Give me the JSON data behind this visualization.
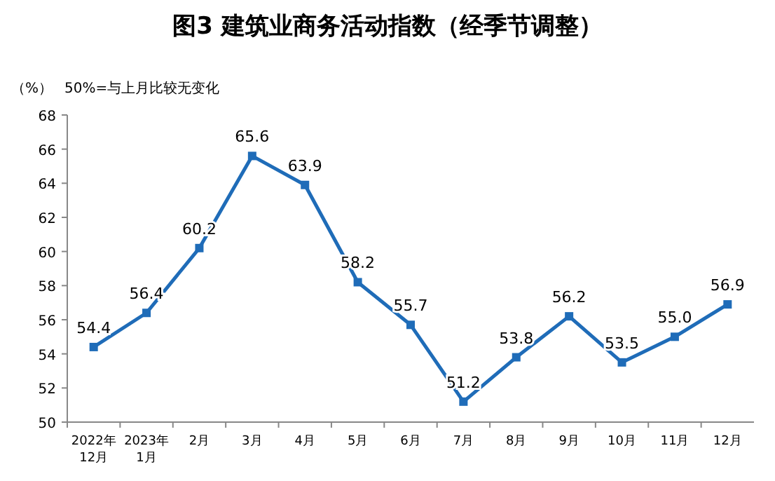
{
  "chart_data": {
    "type": "line",
    "title": "图3  建筑业商务活动指数（经季节调整）",
    "ylabel": "（%）",
    "annotations": [
      "50%=与上月比较无变化"
    ],
    "categories": [
      "2022年\n12月",
      "2023年\n1月",
      "2月",
      "3月",
      "4月",
      "5月",
      "6月",
      "7月",
      "8月",
      "9月",
      "10月",
      "11月",
      "12月"
    ],
    "series": [
      {
        "color": "#1f6cb8",
        "values": [
          54.4,
          56.4,
          60.2,
          65.6,
          63.9,
          58.2,
          55.7,
          51.2,
          53.8,
          56.2,
          53.5,
          55.0,
          56.9
        ],
        "value_labels": [
          "54.4",
          "56.4",
          "60.2",
          "65.6",
          "63.9",
          "58.2",
          "55.7",
          "51.2",
          "53.8",
          "56.2",
          "53.5",
          "55.0",
          "56.9"
        ]
      }
    ],
    "ylim": [
      50,
      68
    ],
    "yticks": [
      50,
      52,
      54,
      56,
      58,
      60,
      62,
      64,
      66,
      68
    ],
    "grid": false,
    "marker": "square",
    "line_style": "solid"
  }
}
